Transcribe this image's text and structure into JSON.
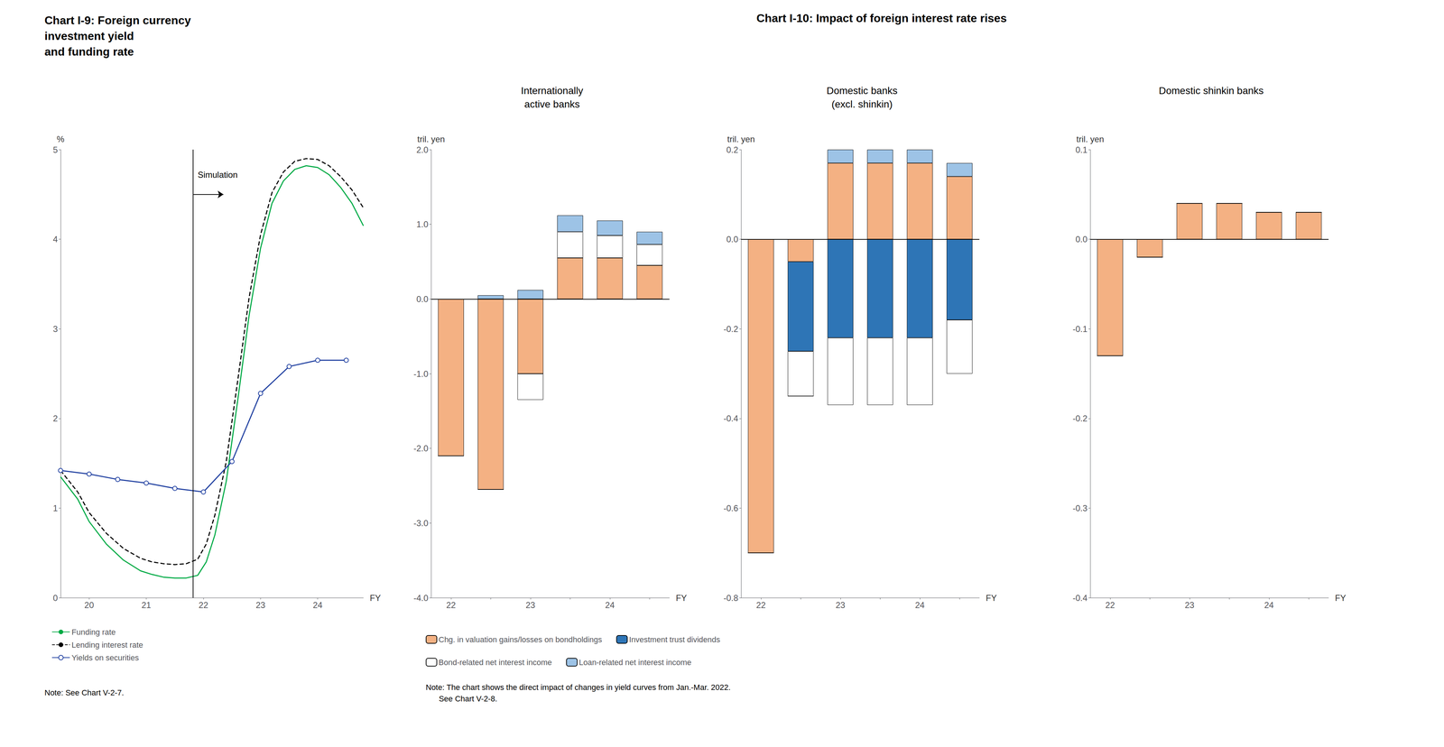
{
  "chart_data": [
    {
      "type": "line",
      "title": "Chart I-9: Foreign currency\ninvestment yield\nand funding rate",
      "xlabel": "FY",
      "ylabel": "%",
      "xlim": [
        19.5,
        24.8
      ],
      "xticks": [
        20,
        21,
        22,
        23,
        24
      ],
      "ylim": [
        0,
        5
      ],
      "yticks": [
        0,
        1,
        2,
        3,
        4,
        5
      ],
      "grid": false,
      "legend": "bottom",
      "series": [
        {
          "name": "Funding rate",
          "color": "#00aa44",
          "line_style": "solid",
          "marker": "none",
          "x": [
            19.5,
            19.8,
            20.0,
            20.3,
            20.6,
            20.9,
            21.1,
            21.3,
            21.5,
            21.7,
            21.9,
            22.05,
            22.2,
            22.4,
            22.6,
            22.8,
            23.0,
            23.2,
            23.4,
            23.6,
            23.8,
            24.0,
            24.2,
            24.4,
            24.6,
            24.8
          ],
          "values": [
            1.35,
            1.1,
            0.85,
            0.6,
            0.42,
            0.3,
            0.26,
            0.23,
            0.22,
            0.22,
            0.25,
            0.4,
            0.7,
            1.3,
            2.2,
            3.15,
            3.9,
            4.4,
            4.65,
            4.78,
            4.82,
            4.8,
            4.72,
            4.58,
            4.4,
            4.15
          ]
        },
        {
          "name": "Lending interest rate",
          "color": "#000000",
          "line_style": "dashed",
          "marker": "none",
          "x": [
            19.5,
            19.8,
            20.0,
            20.3,
            20.6,
            20.9,
            21.1,
            21.3,
            21.5,
            21.7,
            21.9,
            22.05,
            22.2,
            22.4,
            22.6,
            22.8,
            23.0,
            23.2,
            23.4,
            23.6,
            23.8,
            24.0,
            24.2,
            24.4,
            24.6,
            24.8
          ],
          "values": [
            1.42,
            1.18,
            0.95,
            0.72,
            0.55,
            0.44,
            0.4,
            0.38,
            0.37,
            0.38,
            0.43,
            0.6,
            0.92,
            1.52,
            2.42,
            3.35,
            4.05,
            4.52,
            4.75,
            4.87,
            4.9,
            4.89,
            4.82,
            4.7,
            4.55,
            4.35
          ]
        },
        {
          "name": "Yields on securities",
          "color": "#1f3fa0",
          "line_style": "solid",
          "marker": "circle",
          "x": [
            19.5,
            20.0,
            20.5,
            21.0,
            21.5,
            22.0,
            22.5,
            23.0,
            23.5,
            24.0,
            24.5
          ],
          "values": [
            1.42,
            1.38,
            1.32,
            1.28,
            1.22,
            1.18,
            1.52,
            2.28,
            2.58,
            2.65,
            2.65
          ]
        }
      ],
      "vlines": [
        21.82
      ],
      "arrows": [
        {
          "x1": 21.82,
          "x2": 22.35,
          "y": 4.5
        }
      ],
      "annotations": [
        {
          "text": "Simulation",
          "x": 21.9,
          "y": 4.72
        }
      ],
      "note": "Note: See Chart V-2-7."
    },
    {
      "type": "bar",
      "suptitle": "Chart I-10: Impact of foreign interest rate rises",
      "title": "Internationally\nactive banks",
      "xlabel": "FY",
      "ylabel": "tril. yen",
      "stacked": true,
      "grid": false,
      "legend": "bottom",
      "categories": [
        "22",
        null,
        "23",
        null,
        "24",
        null
      ],
      "ylim": [
        -4.0,
        2.0
      ],
      "yticks": [
        {
          "value": -4.0,
          "label": "-4.0"
        },
        {
          "value": -3.0,
          "label": "-3.0"
        },
        {
          "value": -2.0,
          "label": "-2.0"
        },
        {
          "value": -1.0,
          "label": "-1.0"
        },
        {
          "value": 0.0,
          "label": "0.0"
        },
        {
          "value": 1.0,
          "label": "1.0"
        },
        {
          "value": 2.0,
          "label": "2.0"
        }
      ],
      "series": [
        {
          "name": "Chg. in valuation gains/losses on bondholdings",
          "color": "#f4b183",
          "values": [
            -2.1,
            -2.55,
            -1.0,
            0.55,
            0.55,
            0.45
          ]
        },
        {
          "name": "Investment trust dividends",
          "color": "#2e75b6",
          "values": [
            0.0,
            0.0,
            0.0,
            0.0,
            0.0,
            0.0
          ]
        },
        {
          "name": "Bond-related net interest income",
          "color": "#ffffff",
          "values": [
            0.0,
            0.0,
            -0.35,
            0.35,
            0.3,
            0.28
          ]
        },
        {
          "name": "Loan-related net interest income",
          "color": "#9dc3e6",
          "values": [
            0.0,
            0.05,
            0.12,
            0.22,
            0.2,
            0.17
          ]
        }
      ],
      "note": "Note: The chart shows the direct impact of changes in yield curves from Jan.-Mar. 2022.\n      See Chart V-2-8."
    },
    {
      "type": "bar",
      "title": "Domestic banks\n(excl. shinkin)",
      "xlabel": "FY",
      "ylabel": "tril. yen",
      "stacked": true,
      "grid": false,
      "legend": false,
      "categories": [
        "22",
        null,
        "23",
        null,
        "24",
        null
      ],
      "ylim": [
        -0.8,
        0.2
      ],
      "yticks": [
        -0.8,
        -0.6,
        -0.4,
        -0.2,
        {
          "value": 0.0,
          "label": "0.0"
        },
        0.2
      ],
      "series": [
        {
          "name": "Chg. in valuation gains/losses on bondholdings",
          "color": "#f4b183",
          "values": [
            -0.7,
            -0.05,
            0.17,
            0.17,
            0.17,
            0.14
          ]
        },
        {
          "name": "Investment trust dividends",
          "color": "#2e75b6",
          "values": [
            0.0,
            -0.2,
            -0.22,
            -0.22,
            -0.22,
            -0.18
          ]
        },
        {
          "name": "Bond-related net interest income",
          "color": "#ffffff",
          "values": [
            0.0,
            -0.1,
            -0.15,
            -0.15,
            -0.15,
            -0.12
          ]
        },
        {
          "name": "Loan-related net interest income",
          "color": "#9dc3e6",
          "values": [
            0.0,
            0.0,
            0.03,
            0.03,
            0.03,
            0.03
          ]
        }
      ]
    },
    {
      "type": "bar",
      "title": "Domestic shinkin banks",
      "xlabel": "FY",
      "ylabel": "tril. yen",
      "stacked": true,
      "grid": false,
      "legend": false,
      "categories": [
        "22",
        null,
        "23",
        null,
        "24",
        null
      ],
      "ylim": [
        -0.4,
        0.1
      ],
      "yticks": [
        -0.4,
        -0.3,
        -0.2,
        -0.1,
        {
          "value": 0.0,
          "label": "0.0"
        },
        0.1
      ],
      "series": [
        {
          "name": "Chg. in valuation gains/losses on bondholdings",
          "color": "#f4b183",
          "values": [
            -0.13,
            -0.02,
            0.04,
            0.04,
            0.03,
            0.03
          ]
        },
        {
          "name": "Investment trust dividends",
          "color": "#2e75b6",
          "values": [
            0.0,
            0.0,
            0.0,
            0.0,
            0.0,
            0.0
          ]
        },
        {
          "name": "Bond-related net interest income",
          "color": "#ffffff",
          "values": [
            0.0,
            0.0,
            0.0,
            0.0,
            0.0,
            0.0
          ]
        },
        {
          "name": "Loan-related net interest income",
          "color": "#9dc3e6",
          "values": [
            0.0,
            0.0,
            0.0,
            0.0,
            0.0,
            0.0
          ]
        }
      ]
    }
  ]
}
